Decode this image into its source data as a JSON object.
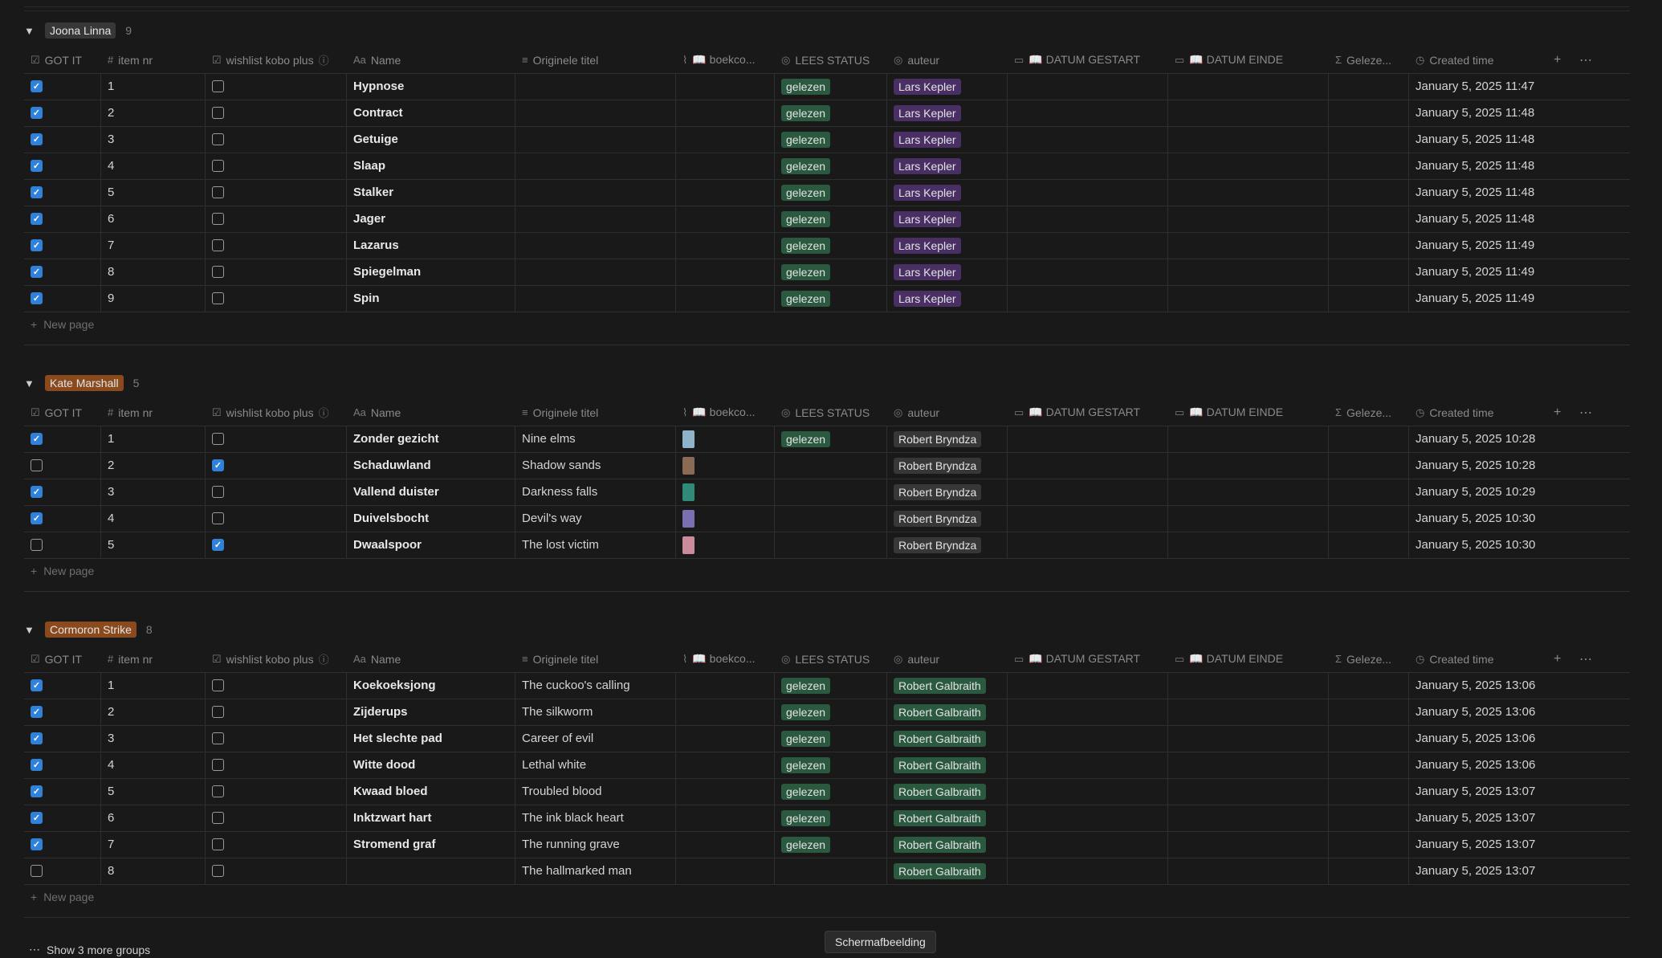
{
  "columns": {
    "got_it": "GOT IT",
    "item_nr": "item nr",
    "wishlist": "wishlist kobo plus",
    "name": "Name",
    "originele_titel": "Originele titel",
    "boekcover": "📖 boekco...",
    "lees_status": "LEES STATUS",
    "auteur": "auteur",
    "datum_gestart": "📖 DATUM GESTART",
    "datum_einde": "📖 DATUM EINDE",
    "gelezen": "Geleze...",
    "created_time": "Created time"
  },
  "new_page_label": "New page",
  "show_more_label": "Show 3 more groups",
  "tooltip": "Schermafbeelding",
  "colors": {
    "checkbox_on": "#2f81d9",
    "status_green": "#2b593f",
    "author_purple": "#492f64",
    "author_grey": "#373737"
  },
  "groups": [
    {
      "title": "Joona Linna",
      "count": "9",
      "tag_color": "#373737",
      "rows": [
        {
          "got": true,
          "nr": "1",
          "wish": false,
          "name": "Hypnose",
          "orig": "",
          "cover": null,
          "status": "gelezen",
          "author": "Lars Kepler",
          "author_color": "purple",
          "created": "January 5, 2025 11:47"
        },
        {
          "got": true,
          "nr": "2",
          "wish": false,
          "name": "Contract",
          "orig": "",
          "cover": null,
          "status": "gelezen",
          "author": "Lars Kepler",
          "author_color": "purple",
          "created": "January 5, 2025 11:48"
        },
        {
          "got": true,
          "nr": "3",
          "wish": false,
          "name": "Getuige",
          "orig": "",
          "cover": null,
          "status": "gelezen",
          "author": "Lars Kepler",
          "author_color": "purple",
          "created": "January 5, 2025 11:48"
        },
        {
          "got": true,
          "nr": "4",
          "wish": false,
          "name": "Slaap",
          "orig": "",
          "cover": null,
          "status": "gelezen",
          "author": "Lars Kepler",
          "author_color": "purple",
          "created": "January 5, 2025 11:48"
        },
        {
          "got": true,
          "nr": "5",
          "wish": false,
          "name": "Stalker",
          "orig": "",
          "cover": null,
          "status": "gelezen",
          "author": "Lars Kepler",
          "author_color": "purple",
          "created": "January 5, 2025 11:48"
        },
        {
          "got": true,
          "nr": "6",
          "wish": false,
          "name": "Jager",
          "orig": "",
          "cover": null,
          "status": "gelezen",
          "author": "Lars Kepler",
          "author_color": "purple",
          "created": "January 5, 2025 11:48"
        },
        {
          "got": true,
          "nr": "7",
          "wish": false,
          "name": "Lazarus",
          "orig": "",
          "cover": null,
          "status": "gelezen",
          "author": "Lars Kepler",
          "author_color": "purple",
          "created": "January 5, 2025 11:49"
        },
        {
          "got": true,
          "nr": "8",
          "wish": false,
          "name": "Spiegelman",
          "orig": "",
          "cover": null,
          "status": "gelezen",
          "author": "Lars Kepler",
          "author_color": "purple",
          "created": "January 5, 2025 11:49"
        },
        {
          "got": true,
          "nr": "9",
          "wish": false,
          "name": "Spin",
          "orig": "",
          "cover": null,
          "status": "gelezen",
          "author": "Lars Kepler",
          "author_color": "purple",
          "created": "January 5, 2025 11:49"
        }
      ]
    },
    {
      "title": "Kate Marshall",
      "count": "5",
      "tag_color": "#8a4a1e",
      "rows": [
        {
          "got": true,
          "nr": "1",
          "wish": false,
          "name": "Zonder gezicht",
          "orig": "Nine elms",
          "cover": "#8fb3c9",
          "status": "gelezen",
          "author": "Robert Bryndza",
          "author_color": "grey",
          "created": "January 5, 2025 10:28"
        },
        {
          "got": false,
          "nr": "2",
          "wish": true,
          "name": "Schaduwland",
          "orig": "Shadow sands",
          "cover": "#8a6a55",
          "status": "",
          "author": "Robert Bryndza",
          "author_color": "grey",
          "created": "January 5, 2025 10:28"
        },
        {
          "got": true,
          "nr": "3",
          "wish": false,
          "name": "Vallend duister",
          "orig": "Darkness falls",
          "cover": "#2f8a78",
          "status": "",
          "author": "Robert Bryndza",
          "author_color": "grey",
          "created": "January 5, 2025 10:29"
        },
        {
          "got": true,
          "nr": "4",
          "wish": false,
          "name": "Duivelsbocht",
          "orig": "Devil's way",
          "cover": "#7a6fb0",
          "status": "",
          "author": "Robert Bryndza",
          "author_color": "grey",
          "created": "January 5, 2025 10:30"
        },
        {
          "got": false,
          "nr": "5",
          "wish": true,
          "name": "Dwaalspoor",
          "orig": "The lost victim",
          "cover": "#c98a9a",
          "status": "",
          "author": "Robert Bryndza",
          "author_color": "grey",
          "created": "January 5, 2025 10:30"
        }
      ]
    },
    {
      "title": "Cormoron Strike",
      "count": "8",
      "tag_color": "#8a4a1e",
      "rows": [
        {
          "got": true,
          "nr": "1",
          "wish": false,
          "name": "Koekoeksjong",
          "orig": "The cuckoo's calling",
          "cover": null,
          "status": "gelezen",
          "author": "Robert Galbraith",
          "author_color": "green",
          "created": "January 5, 2025 13:06"
        },
        {
          "got": true,
          "nr": "2",
          "wish": false,
          "name": "Zijderups",
          "orig": "The silkworm",
          "cover": null,
          "status": "gelezen",
          "author": "Robert Galbraith",
          "author_color": "green",
          "created": "January 5, 2025 13:06"
        },
        {
          "got": true,
          "nr": "3",
          "wish": false,
          "name": "Het slechte pad",
          "orig": "Career of evil",
          "cover": null,
          "status": "gelezen",
          "author": "Robert Galbraith",
          "author_color": "green",
          "created": "January 5, 2025 13:06"
        },
        {
          "got": true,
          "nr": "4",
          "wish": false,
          "name": "Witte dood",
          "orig": "Lethal white",
          "cover": null,
          "status": "gelezen",
          "author": "Robert Galbraith",
          "author_color": "green",
          "created": "January 5, 2025 13:06"
        },
        {
          "got": true,
          "nr": "5",
          "wish": false,
          "name": "Kwaad bloed",
          "orig": "Troubled blood",
          "cover": null,
          "status": "gelezen",
          "author": "Robert Galbraith",
          "author_color": "green",
          "created": "January 5, 2025 13:07"
        },
        {
          "got": true,
          "nr": "6",
          "wish": false,
          "name": "Inktzwart hart",
          "orig": "The ink black heart",
          "cover": null,
          "status": "gelezen",
          "author": "Robert Galbraith",
          "author_color": "green",
          "created": "January 5, 2025 13:07"
        },
        {
          "got": true,
          "nr": "7",
          "wish": false,
          "name": "Stromend graf",
          "orig": "The running grave",
          "cover": null,
          "status": "gelezen",
          "author": "Robert Galbraith",
          "author_color": "green",
          "created": "January 5, 2025 13:07"
        },
        {
          "got": false,
          "nr": "8",
          "wish": false,
          "name": "",
          "orig": "The hallmarked man",
          "cover": null,
          "status": "",
          "author": "Robert Galbraith",
          "author_color": "green",
          "created": "January 5, 2025 13:07"
        }
      ]
    }
  ]
}
